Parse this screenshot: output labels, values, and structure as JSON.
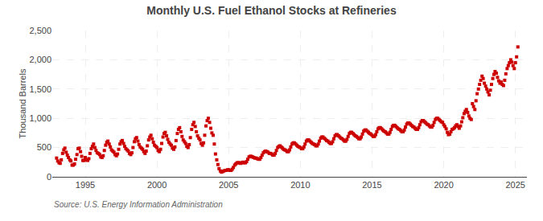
{
  "chart_data": {
    "type": "scatter",
    "title": "Monthly U.S. Fuel Ethanol Stocks at Refineries",
    "ylabel": "Thousand Barrels",
    "annotations": [
      "Source: U.S. Energy Information Administration"
    ],
    "color": "#cc0000",
    "marker": "square",
    "grid": true,
    "xlim": [
      1992.7,
      2025.8
    ],
    "xticks": [
      1995,
      2000,
      2005,
      2010,
      2015,
      2020,
      2025
    ],
    "ylim": [
      0,
      2500
    ],
    "yticks": [
      0,
      500,
      {
        "value": 1000,
        "label": "1,000"
      },
      {
        "value": 1500,
        "label": "1,500"
      },
      {
        "value": 2000,
        "label": "2,000"
      },
      {
        "value": 2500,
        "label": "2,500"
      }
    ],
    "x": [
      1993.0,
      1993.08,
      1993.17,
      1993.25,
      1993.33,
      1993.42,
      1993.5,
      1993.58,
      1993.67,
      1993.75,
      1993.83,
      1993.92,
      1994.0,
      1994.08,
      1994.17,
      1994.25,
      1994.33,
      1994.42,
      1994.5,
      1994.58,
      1994.67,
      1994.75,
      1994.83,
      1994.92,
      1995.0,
      1995.08,
      1995.17,
      1995.25,
      1995.33,
      1995.42,
      1995.5,
      1995.58,
      1995.67,
      1995.75,
      1995.83,
      1995.92,
      1996.0,
      1996.08,
      1996.17,
      1996.25,
      1996.33,
      1996.42,
      1996.5,
      1996.58,
      1996.67,
      1996.75,
      1996.83,
      1996.92,
      1997.0,
      1997.08,
      1997.17,
      1997.25,
      1997.33,
      1997.42,
      1997.5,
      1997.58,
      1997.67,
      1997.75,
      1997.83,
      1997.92,
      1998.0,
      1998.08,
      1998.17,
      1998.25,
      1998.33,
      1998.42,
      1998.5,
      1998.58,
      1998.67,
      1998.75,
      1998.83,
      1998.92,
      1999.0,
      1999.08,
      1999.17,
      1999.25,
      1999.33,
      1999.42,
      1999.5,
      1999.58,
      1999.67,
      1999.75,
      1999.83,
      1999.92,
      2000.0,
      2000.08,
      2000.17,
      2000.25,
      2000.33,
      2000.42,
      2000.5,
      2000.58,
      2000.67,
      2000.75,
      2000.83,
      2000.92,
      2001.0,
      2001.08,
      2001.17,
      2001.25,
      2001.33,
      2001.42,
      2001.5,
      2001.58,
      2001.67,
      2001.75,
      2001.83,
      2001.92,
      2002.0,
      2002.08,
      2002.17,
      2002.25,
      2002.33,
      2002.42,
      2002.5,
      2002.58,
      2002.67,
      2002.75,
      2002.83,
      2002.92,
      2003.0,
      2003.08,
      2003.17,
      2003.25,
      2003.33,
      2003.42,
      2003.5,
      2003.58,
      2003.67,
      2003.75,
      2003.83,
      2003.92,
      2004.0,
      2004.08,
      2004.17,
      2004.25,
      2004.33,
      2004.42,
      2004.5,
      2004.58,
      2004.67,
      2004.75,
      2004.83,
      2004.92,
      2005.0,
      2005.08,
      2005.17,
      2005.25,
      2005.33,
      2005.42,
      2005.5,
      2005.58,
      2005.67,
      2005.75,
      2005.83,
      2005.92,
      2006.0,
      2006.08,
      2006.17,
      2006.25,
      2006.33,
      2006.42,
      2006.5,
      2006.58,
      2006.67,
      2006.75,
      2006.83,
      2006.92,
      2007.0,
      2007.08,
      2007.17,
      2007.25,
      2007.33,
      2007.42,
      2007.5,
      2007.58,
      2007.67,
      2007.75,
      2007.83,
      2007.92,
      2008.0,
      2008.08,
      2008.17,
      2008.25,
      2008.33,
      2008.42,
      2008.5,
      2008.58,
      2008.67,
      2008.75,
      2008.83,
      2008.92,
      2009.0,
      2009.08,
      2009.17,
      2009.25,
      2009.33,
      2009.42,
      2009.5,
      2009.58,
      2009.67,
      2009.75,
      2009.83,
      2009.92,
      2010.0,
      2010.08,
      2010.17,
      2010.25,
      2010.33,
      2010.42,
      2010.5,
      2010.58,
      2010.67,
      2010.75,
      2010.83,
      2010.92,
      2011.0,
      2011.08,
      2011.17,
      2011.25,
      2011.33,
      2011.42,
      2011.5,
      2011.58,
      2011.67,
      2011.75,
      2011.83,
      2011.92,
      2012.0,
      2012.08,
      2012.17,
      2012.25,
      2012.33,
      2012.42,
      2012.5,
      2012.58,
      2012.67,
      2012.75,
      2012.83,
      2012.92,
      2013.0,
      2013.08,
      2013.17,
      2013.25,
      2013.33,
      2013.42,
      2013.5,
      2013.58,
      2013.67,
      2013.75,
      2013.83,
      2013.92,
      2014.0,
      2014.08,
      2014.17,
      2014.25,
      2014.33,
      2014.42,
      2014.5,
      2014.58,
      2014.67,
      2014.75,
      2014.83,
      2014.92,
      2015.0,
      2015.08,
      2015.17,
      2015.25,
      2015.33,
      2015.42,
      2015.5,
      2015.58,
      2015.67,
      2015.75,
      2015.83,
      2015.92,
      2016.0,
      2016.08,
      2016.17,
      2016.25,
      2016.33,
      2016.42,
      2016.5,
      2016.58,
      2016.67,
      2016.75,
      2016.83,
      2016.92,
      2017.0,
      2017.08,
      2017.17,
      2017.25,
      2017.33,
      2017.42,
      2017.5,
      2017.58,
      2017.67,
      2017.75,
      2017.83,
      2017.92,
      2018.0,
      2018.08,
      2018.17,
      2018.25,
      2018.33,
      2018.42,
      2018.5,
      2018.58,
      2018.67,
      2018.75,
      2018.83,
      2018.92,
      2019.0,
      2019.08,
      2019.17,
      2019.25,
      2019.33,
      2019.42,
      2019.5,
      2019.58,
      2019.67,
      2019.75,
      2019.83,
      2019.92,
      2020.0,
      2020.08,
      2020.17,
      2020.25,
      2020.33,
      2020.42,
      2020.5,
      2020.58,
      2020.67,
      2020.75,
      2020.83,
      2020.92,
      2021.0,
      2021.08,
      2021.17,
      2021.25,
      2021.33,
      2021.42,
      2021.5,
      2021.58,
      2021.67,
      2021.75,
      2021.83,
      2021.92,
      2022.0,
      2022.08,
      2022.17,
      2022.25,
      2022.33,
      2022.42,
      2022.5,
      2022.58,
      2022.67,
      2022.75,
      2022.83,
      2022.92,
      2023.0,
      2023.08,
      2023.17,
      2023.25,
      2023.33,
      2023.42,
      2023.5,
      2023.58,
      2023.67,
      2023.75,
      2023.83,
      2023.92,
      2024.0,
      2024.08,
      2024.17,
      2024.25,
      2024.33,
      2024.42,
      2024.5,
      2024.58,
      2024.67,
      2024.75,
      2024.83,
      2024.92,
      2025.0,
      2025.08,
      2025.17
    ],
    "values": [
      320,
      270,
      240,
      230,
      290,
      400,
      460,
      490,
      420,
      370,
      330,
      290,
      270,
      200,
      200,
      220,
      300,
      380,
      480,
      490,
      430,
      350,
      280,
      280,
      330,
      290,
      280,
      310,
      400,
      480,
      520,
      560,
      500,
      450,
      410,
      400,
      380,
      340,
      330,
      360,
      450,
      540,
      590,
      610,
      560,
      510,
      460,
      440,
      420,
      380,
      360,
      390,
      470,
      560,
      600,
      620,
      570,
      520,
      480,
      460,
      440,
      400,
      380,
      410,
      500,
      600,
      650,
      670,
      610,
      550,
      510,
      490,
      470,
      430,
      400,
      440,
      530,
      630,
      680,
      710,
      650,
      590,
      540,
      520,
      500,
      450,
      430,
      470,
      570,
      680,
      740,
      760,
      700,
      640,
      590,
      560,
      540,
      490,
      470,
      510,
      620,
      740,
      810,
      840,
      770,
      690,
      630,
      600,
      570,
      520,
      500,
      550,
      670,
      810,
      890,
      930,
      860,
      770,
      700,
      660,
      630,
      570,
      540,
      580,
      710,
      870,
      960,
      1000,
      930,
      830,
      750,
      710,
      560,
      390,
      290,
      210,
      140,
      100,
      80,
      90,
      100,
      110,
      110,
      120,
      120,
      110,
      110,
      130,
      160,
      200,
      220,
      240,
      240,
      240,
      230,
      240,
      250,
      240,
      240,
      260,
      300,
      340,
      350,
      350,
      340,
      330,
      320,
      320,
      310,
      300,
      300,
      330,
      370,
      410,
      430,
      440,
      430,
      420,
      400,
      400,
      390,
      370,
      370,
      400,
      450,
      500,
      520,
      530,
      510,
      490,
      470,
      460,
      450,
      430,
      430,
      460,
      510,
      560,
      580,
      580,
      560,
      540,
      520,
      510,
      500,
      480,
      480,
      510,
      560,
      610,
      630,
      630,
      610,
      590,
      570,
      560,
      550,
      530,
      530,
      560,
      610,
      660,
      680,
      680,
      660,
      640,
      620,
      610,
      590,
      570,
      570,
      600,
      650,
      700,
      720,
      720,
      700,
      680,
      660,
      650,
      630,
      610,
      610,
      640,
      690,
      740,
      760,
      760,
      740,
      720,
      700,
      690,
      670,
      650,
      650,
      680,
      730,
      780,
      800,
      800,
      780,
      760,
      740,
      730,
      710,
      690,
      690,
      720,
      770,
      820,
      840,
      840,
      820,
      800,
      780,
      770,
      750,
      730,
      730,
      760,
      810,
      860,
      880,
      880,
      860,
      840,
      820,
      810,
      790,
      770,
      770,
      800,
      850,
      900,
      920,
      920,
      900,
      880,
      860,
      850,
      830,
      810,
      810,
      840,
      890,
      940,
      960,
      960,
      940,
      920,
      900,
      890,
      870,
      850,
      850,
      880,
      930,
      980,
      1000,
      1000,
      980,
      960,
      940,
      930,
      890,
      860,
      820,
      760,
      720,
      730,
      770,
      810,
      820,
      840,
      870,
      890,
      860,
      830,
      870,
      940,
      1010,
      1080,
      1120,
      1150,
      1100,
      1040,
      1000,
      980,
      1250,
      1200,
      1150,
      1300,
      1420,
      1500,
      1580,
      1650,
      1720,
      1680,
      1600,
      1550,
      1500,
      1450,
      1400,
      1480,
      1580,
      1680,
      1750,
      1800,
      1770,
      1700,
      1640,
      1600,
      1620,
      1580,
      1560,
      1650,
      1760,
      1850,
      1900,
      1950,
      2000,
      1960,
      1900,
      1850,
      1950,
      2050,
      2220
    ]
  }
}
